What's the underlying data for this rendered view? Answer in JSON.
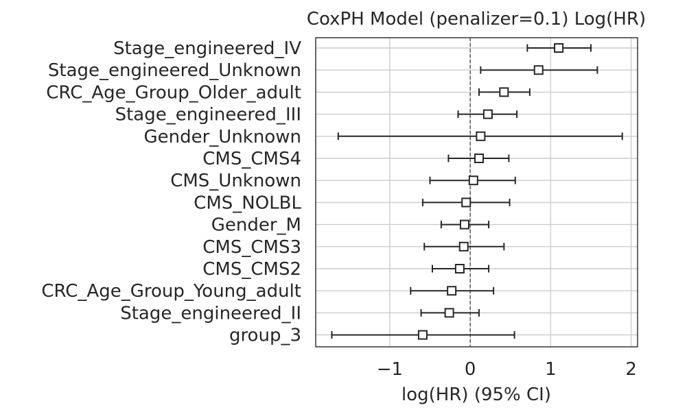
{
  "chart_data": {
    "type": "forest",
    "title": "CoxPH Model (penalizer=0.1) Log(HR)",
    "xlabel": "log(HR) (95% CI)",
    "ylabel": "",
    "xlim": [
      -1.92,
      2.08
    ],
    "xticks": [
      -1,
      0,
      1,
      2
    ],
    "xtick_labels": [
      "−1",
      "0",
      "1",
      "2"
    ],
    "reference_line_x": 0,
    "grid": true,
    "marker": "open-square",
    "colors": {
      "grid": "#cccccc",
      "marks": "#262626",
      "reference": "#444444",
      "axes": "#262626"
    },
    "variables": [
      "Stage_engineered_IV",
      "Stage_engineered_Unknown",
      "CRC_Age_Group_Older_adult",
      "Stage_engineered_III",
      "Gender_Unknown",
      "CMS_CMS4",
      "CMS_Unknown",
      "CMS_NOLBL",
      "Gender_M",
      "CMS_CMS3",
      "CMS_CMS2",
      "CRC_Age_Group_Young_adult",
      "Stage_engineered_II",
      "group_3"
    ],
    "coef": [
      1.1,
      0.85,
      0.42,
      0.22,
      0.13,
      0.11,
      0.04,
      -0.05,
      -0.07,
      -0.08,
      -0.13,
      -0.23,
      -0.26,
      -0.59
    ],
    "lower": [
      0.71,
      0.13,
      0.11,
      -0.15,
      -1.64,
      -0.27,
      -0.5,
      -0.59,
      -0.36,
      -0.57,
      -0.47,
      -0.74,
      -0.61,
      -1.72
    ],
    "upper": [
      1.5,
      1.58,
      0.74,
      0.58,
      1.89,
      0.48,
      0.56,
      0.49,
      0.23,
      0.42,
      0.23,
      0.29,
      0.11,
      0.55
    ]
  }
}
